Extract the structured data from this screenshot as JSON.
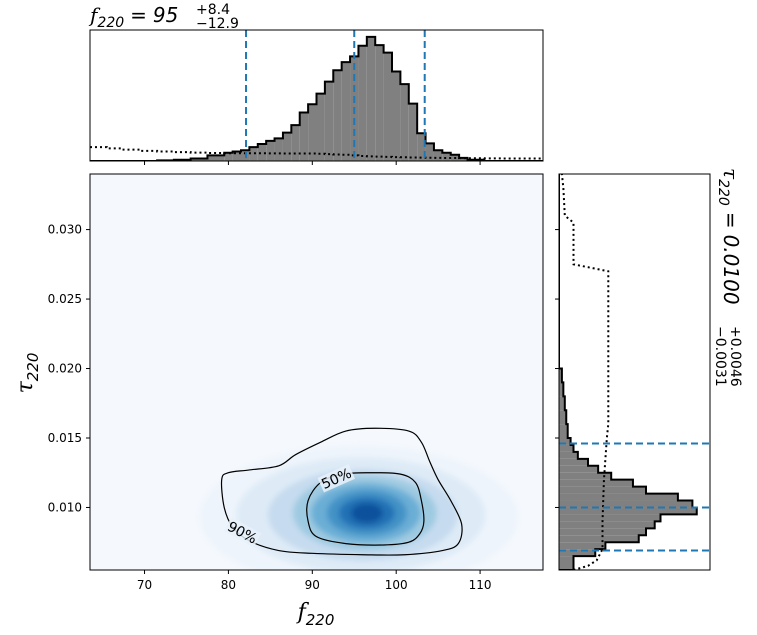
{
  "chart_data": {
    "type": "corner",
    "parameters": [
      {
        "symbol": "f",
        "subscript": "220",
        "estimate": "95",
        "plus": "+8.4",
        "minus": "−12.9"
      },
      {
        "symbol": "τ",
        "subscript": "220",
        "estimate": "0.0100",
        "plus": "+0.0046",
        "minus": "−0.0031"
      }
    ],
    "x_range": [
      63.5,
      117.5
    ],
    "y_range": [
      0.0055,
      0.034
    ],
    "x_ticks": [
      70,
      80,
      90,
      100,
      110
    ],
    "x_tick_labels": [
      "70",
      "80",
      "90",
      "100",
      "110"
    ],
    "y_ticks": [
      0.01,
      0.015,
      0.02,
      0.025,
      0.03
    ],
    "y_tick_labels": [
      "0.010",
      "0.015",
      "0.020",
      "0.025",
      "0.030"
    ],
    "top_histogram": {
      "bin_edges": [
        63.5,
        65.5,
        67.5,
        69.5,
        71.5,
        73.5,
        75.5,
        77.5,
        79.5,
        80.5,
        81.5,
        82.5,
        83.5,
        84.5,
        85.5,
        86.5,
        87.5,
        88.5,
        89.5,
        90.5,
        91.5,
        92.5,
        93.5,
        94.5,
        95.5,
        96.5,
        97.5,
        98.5,
        99.5,
        100.5,
        101.5,
        102.5,
        103.5,
        104.5,
        105.5,
        106.5,
        107.5,
        108.5,
        110.5,
        112.5,
        117.5
      ],
      "posterior": [
        0.0,
        0.0,
        0.0,
        0.0,
        0.005,
        0.01,
        0.02,
        0.045,
        0.065,
        0.075,
        0.085,
        0.11,
        0.135,
        0.16,
        0.18,
        0.225,
        0.285,
        0.385,
        0.45,
        0.535,
        0.63,
        0.72,
        0.785,
        0.83,
        0.915,
        0.985,
        0.92,
        0.86,
        0.71,
        0.61,
        0.455,
        0.22,
        0.14,
        0.085,
        0.065,
        0.05,
        0.025,
        0.01,
        0.0,
        0.0
      ],
      "prior": [
        0.11,
        0.1,
        0.09,
        0.08,
        0.075,
        0.07,
        0.066,
        0.063,
        0.062,
        0.062,
        0.062,
        0.062,
        0.062,
        0.061,
        0.061,
        0.06,
        0.06,
        0.06,
        0.06,
        0.058,
        0.055,
        0.052,
        0.05,
        0.045,
        0.04,
        0.037,
        0.035,
        0.033,
        0.031,
        0.03,
        0.028,
        0.027,
        0.026,
        0.025,
        0.024,
        0.024,
        0.023,
        0.022,
        0.021,
        0.02
      ],
      "quantile_lines": [
        82.1,
        95.0,
        103.4
      ]
    },
    "right_histogram": {
      "bin_edges": [
        0.0055,
        0.0065,
        0.007,
        0.0075,
        0.008,
        0.0085,
        0.009,
        0.0095,
        0.01,
        0.0105,
        0.011,
        0.0115,
        0.012,
        0.0125,
        0.013,
        0.0135,
        0.014,
        0.0145,
        0.015,
        0.016,
        0.017,
        0.018,
        0.019,
        0.02,
        0.034
      ],
      "posterior": [
        0.1,
        0.25,
        0.32,
        0.55,
        0.6,
        0.66,
        0.7,
        0.95,
        0.92,
        0.82,
        0.6,
        0.51,
        0.36,
        0.27,
        0.2,
        0.13,
        0.1,
        0.08,
        0.06,
        0.05,
        0.04,
        0.03,
        0.02,
        0.0
      ],
      "quantile_lines": [
        0.0069,
        0.01,
        0.0146
      ]
    },
    "right_prior_path": [
      [
        0.0055,
        0.1
      ],
      [
        0.0058,
        0.2
      ],
      [
        0.0062,
        0.26
      ],
      [
        0.007,
        0.3
      ],
      [
        0.009,
        0.3
      ],
      [
        0.012,
        0.31
      ],
      [
        0.015,
        0.33
      ],
      [
        0.016,
        0.34
      ],
      [
        0.02,
        0.34
      ],
      [
        0.027,
        0.34
      ],
      [
        0.0275,
        0.1
      ],
      [
        0.0305,
        0.1
      ],
      [
        0.031,
        0.04
      ],
      [
        0.033,
        0.03
      ],
      [
        0.034,
        0.02
      ]
    ],
    "density_peak": {
      "x": 96.5,
      "y": 0.0096
    },
    "contours": [
      {
        "label": "50%",
        "points": [
          [
            89.5,
            0.009
          ],
          [
            90.5,
            0.0079
          ],
          [
            94.0,
            0.0074
          ],
          [
            98.5,
            0.0073
          ],
          [
            101.5,
            0.0075
          ],
          [
            102.8,
            0.0081
          ],
          [
            103.3,
            0.009
          ],
          [
            103.0,
            0.0105
          ],
          [
            102.3,
            0.0118
          ],
          [
            100.5,
            0.0124
          ],
          [
            97.0,
            0.0125
          ],
          [
            93.5,
            0.0124
          ],
          [
            91.0,
            0.0118
          ],
          [
            89.5,
            0.0105
          ]
        ]
      },
      {
        "label": "90%",
        "points": [
          [
            79.5,
            0.01
          ],
          [
            80.5,
            0.0086
          ],
          [
            82.5,
            0.0076
          ],
          [
            86.0,
            0.0069
          ],
          [
            90.0,
            0.0067
          ],
          [
            96.0,
            0.0066
          ],
          [
            101.0,
            0.0066
          ],
          [
            105.5,
            0.0069
          ],
          [
            107.4,
            0.0074
          ],
          [
            107.8,
            0.0088
          ],
          [
            106.5,
            0.0105
          ],
          [
            105.0,
            0.012
          ],
          [
            104.0,
            0.0133
          ],
          [
            103.0,
            0.0147
          ],
          [
            101.5,
            0.0155
          ],
          [
            97.5,
            0.0157
          ],
          [
            94.0,
            0.0155
          ],
          [
            91.0,
            0.0147
          ],
          [
            88.0,
            0.0138
          ],
          [
            86.0,
            0.013
          ],
          [
            82.5,
            0.0127
          ],
          [
            80.0,
            0.0125
          ],
          [
            79.2,
            0.012
          ]
        ]
      }
    ],
    "colors": {
      "density": "#1f77b4",
      "histogram_fill": "#808080",
      "quantile_line": "#1f77b4",
      "outline": "#000000"
    }
  }
}
